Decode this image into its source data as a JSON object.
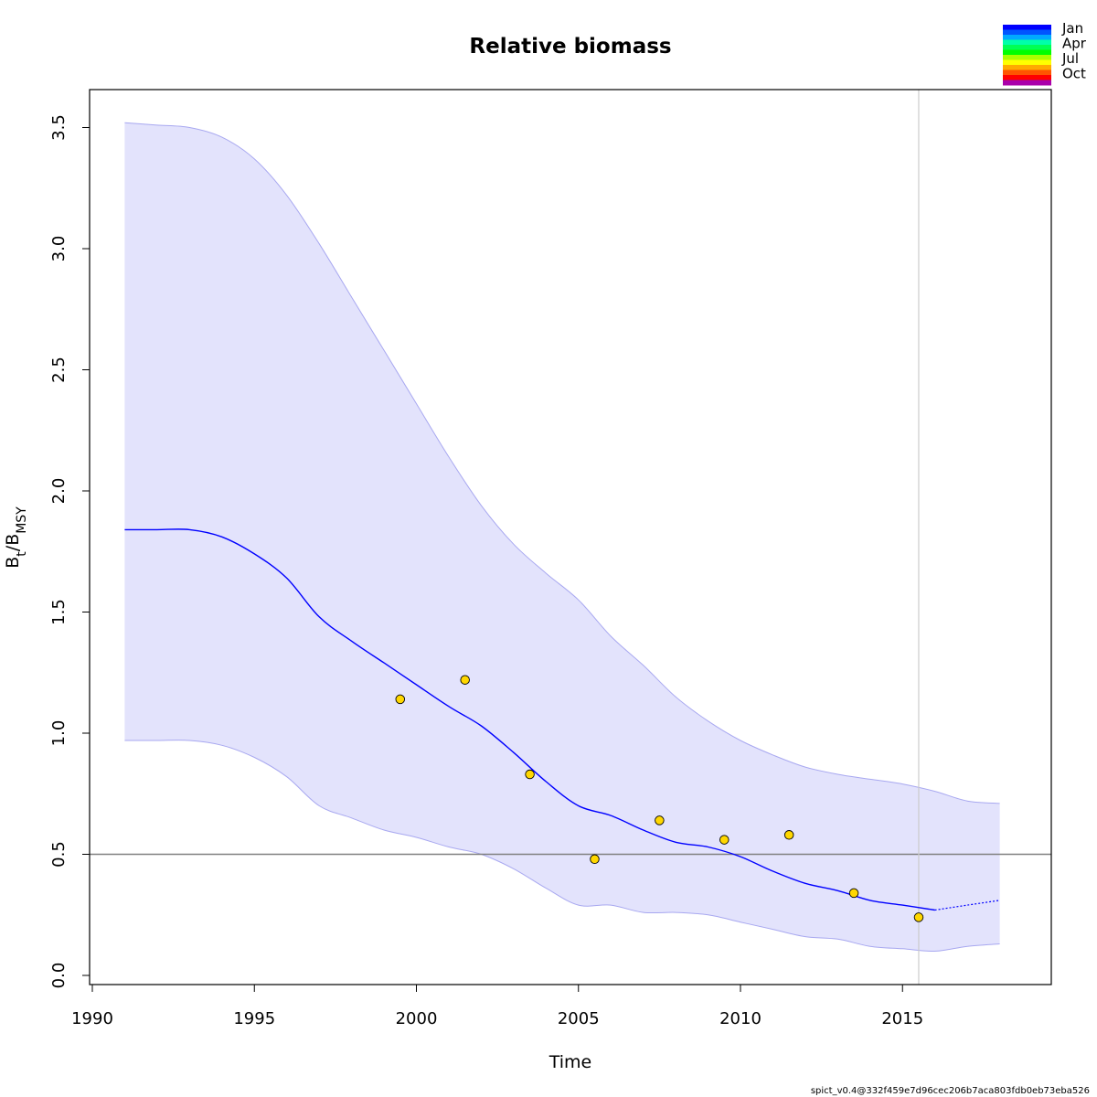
{
  "chart_data": {
    "type": "line",
    "title": "Relative biomass",
    "xlabel": "Time",
    "ylabel": {
      "main": "B",
      "sub1": "t",
      "sep": "/B",
      "sub2": "MSY"
    },
    "xlim": [
      1990,
      2019.6
    ],
    "ylim": [
      0,
      3.6
    ],
    "xticks": [
      1990,
      1995,
      2000,
      2005,
      2010,
      2015
    ],
    "yticks": [
      0.0,
      0.5,
      1.0,
      1.5,
      2.0,
      2.5,
      3.0,
      3.5
    ],
    "ytick_labels": [
      "0.0",
      "0.5",
      "1.0",
      "1.5",
      "2.0",
      "2.5",
      "3.0",
      "3.5"
    ],
    "reference_line_y": 0.5,
    "vertical_line_x": 2015.5,
    "estimate": {
      "x": [
        1991,
        1992,
        1993,
        1994,
        1995,
        1996,
        1997,
        1998,
        1999,
        2000,
        2001,
        2002,
        2003,
        2004,
        2005,
        2006,
        2007,
        2008,
        2009,
        2010,
        2011,
        2012,
        2013,
        2014,
        2015,
        2016
      ],
      "y": [
        1.84,
        1.84,
        1.84,
        1.81,
        1.74,
        1.64,
        1.48,
        1.38,
        1.29,
        1.2,
        1.11,
        1.03,
        0.92,
        0.8,
        0.7,
        0.66,
        0.6,
        0.55,
        0.53,
        0.49,
        0.43,
        0.38,
        0.35,
        0.31,
        0.29,
        0.27
      ]
    },
    "prediction": {
      "x": [
        2016,
        2017,
        2018
      ],
      "y": [
        0.27,
        0.29,
        0.31
      ]
    },
    "ci_upper": {
      "x": [
        1991,
        1992,
        1993,
        1994,
        1995,
        1996,
        1997,
        1998,
        1999,
        2000,
        2001,
        2002,
        2003,
        2004,
        2005,
        2006,
        2007,
        2008,
        2009,
        2010,
        2011,
        2012,
        2013,
        2014,
        2015,
        2016,
        2017,
        2018
      ],
      "y": [
        3.52,
        3.51,
        3.5,
        3.46,
        3.37,
        3.22,
        3.02,
        2.8,
        2.58,
        2.36,
        2.14,
        1.94,
        1.78,
        1.66,
        1.55,
        1.4,
        1.28,
        1.15,
        1.05,
        0.97,
        0.91,
        0.86,
        0.83,
        0.81,
        0.79,
        0.76,
        0.72,
        0.71
      ]
    },
    "ci_lower": {
      "x": [
        1991,
        1992,
        1993,
        1994,
        1995,
        1996,
        1997,
        1998,
        1999,
        2000,
        2001,
        2002,
        2003,
        2004,
        2005,
        2006,
        2007,
        2008,
        2009,
        2010,
        2011,
        2012,
        2013,
        2014,
        2015,
        2016,
        2017,
        2018
      ],
      "y": [
        0.97,
        0.97,
        0.97,
        0.95,
        0.9,
        0.82,
        0.7,
        0.65,
        0.6,
        0.57,
        0.53,
        0.5,
        0.44,
        0.36,
        0.29,
        0.29,
        0.26,
        0.26,
        0.25,
        0.22,
        0.19,
        0.16,
        0.15,
        0.12,
        0.11,
        0.1,
        0.12,
        0.13
      ]
    },
    "observations": {
      "x": [
        1999.5,
        2001.5,
        2003.5,
        2005.5,
        2007.5,
        2009.5,
        2011.5,
        2013.5,
        2015.5
      ],
      "y": [
        1.14,
        1.22,
        0.83,
        0.48,
        0.64,
        0.56,
        0.58,
        0.34,
        0.24
      ],
      "color": "#FFD700"
    },
    "colors": {
      "line": "#0000FF",
      "band_fill": "#E3E3FC",
      "band_edge": "#A8A8F0",
      "reference": "#808080",
      "vline": "#CCCCCC"
    },
    "legend": {
      "position": "top-right",
      "labels": [
        "Jan",
        "Apr",
        "Jul",
        "Oct"
      ],
      "colors": [
        "#0000FF",
        "#0055FF",
        "#00AAFF",
        "#00FFAA",
        "#00FF55",
        "#00FF00",
        "#AAFF00",
        "#FFFF00",
        "#FFAA00",
        "#FF5500",
        "#FF0000",
        "#AA00AA"
      ]
    },
    "footer": "spict_v0.4@332f459e7d96cec206b7aca803fdb0eb73eba526"
  }
}
